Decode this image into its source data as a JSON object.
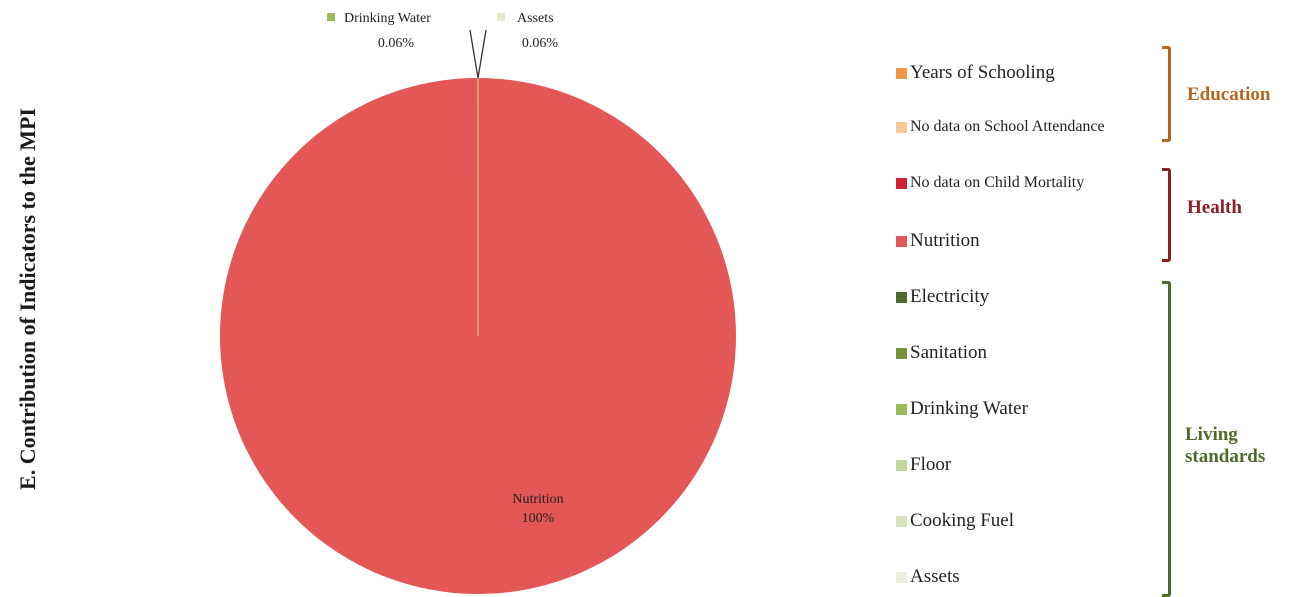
{
  "side_title": "E. Contribution of Indicators to the MPI",
  "chart_data": {
    "type": "pie",
    "slices": [
      {
        "name": "Years of Schooling",
        "value": 0,
        "color": "#f2954d"
      },
      {
        "name": "No data on School Attendance",
        "value": 0,
        "color": "#f9c99a"
      },
      {
        "name": "No data on Child Mortality",
        "value": 0,
        "color": "#cc2233"
      },
      {
        "name": "Nutrition",
        "value": 100,
        "color": "#e35757"
      },
      {
        "name": "Electricity",
        "value": 0,
        "color": "#4f6a2a"
      },
      {
        "name": "Sanitation",
        "value": 0,
        "color": "#76933c"
      },
      {
        "name": "Drinking Water",
        "value": 0.06,
        "color": "#9bbb59"
      },
      {
        "name": "Floor",
        "value": 0,
        "color": "#c3d69b"
      },
      {
        "name": "Cooking Fuel",
        "value": 0,
        "color": "#d7e4bd"
      },
      {
        "name": "Assets",
        "value": 0.06,
        "color": "#ebf1de"
      }
    ],
    "data_labels": [
      {
        "name": "Nutrition",
        "value_label": "100%"
      },
      {
        "name": "Drinking Water",
        "value_label": "0.06%"
      },
      {
        "name": "Assets",
        "value_label": "0.06%"
      }
    ]
  },
  "legend": {
    "groups": [
      {
        "label": "Education",
        "color": "#b3671f",
        "items": [
          {
            "label": "Years of Schooling",
            "color": "#f2954d"
          },
          {
            "label": "No data on School Attendance",
            "color": "#f9c99a"
          }
        ]
      },
      {
        "label": "Health",
        "color": "#8b1f2a",
        "items": [
          {
            "label": "No data on Child Mortality",
            "color": "#cc2233"
          },
          {
            "label": "Nutrition",
            "color": "#e35757"
          }
        ]
      },
      {
        "label": "Living standards",
        "color": "#4f6a2a",
        "items": [
          {
            "label": "Electricity",
            "color": "#4f6a2a"
          },
          {
            "label": "Sanitation",
            "color": "#76933c"
          },
          {
            "label": "Drinking Water",
            "color": "#9bbb59"
          },
          {
            "label": "Floor",
            "color": "#c3d69b"
          },
          {
            "label": "Cooking Fuel",
            "color": "#d7e4bd"
          },
          {
            "label": "Assets",
            "color": "#ebf1de"
          }
        ]
      }
    ]
  }
}
